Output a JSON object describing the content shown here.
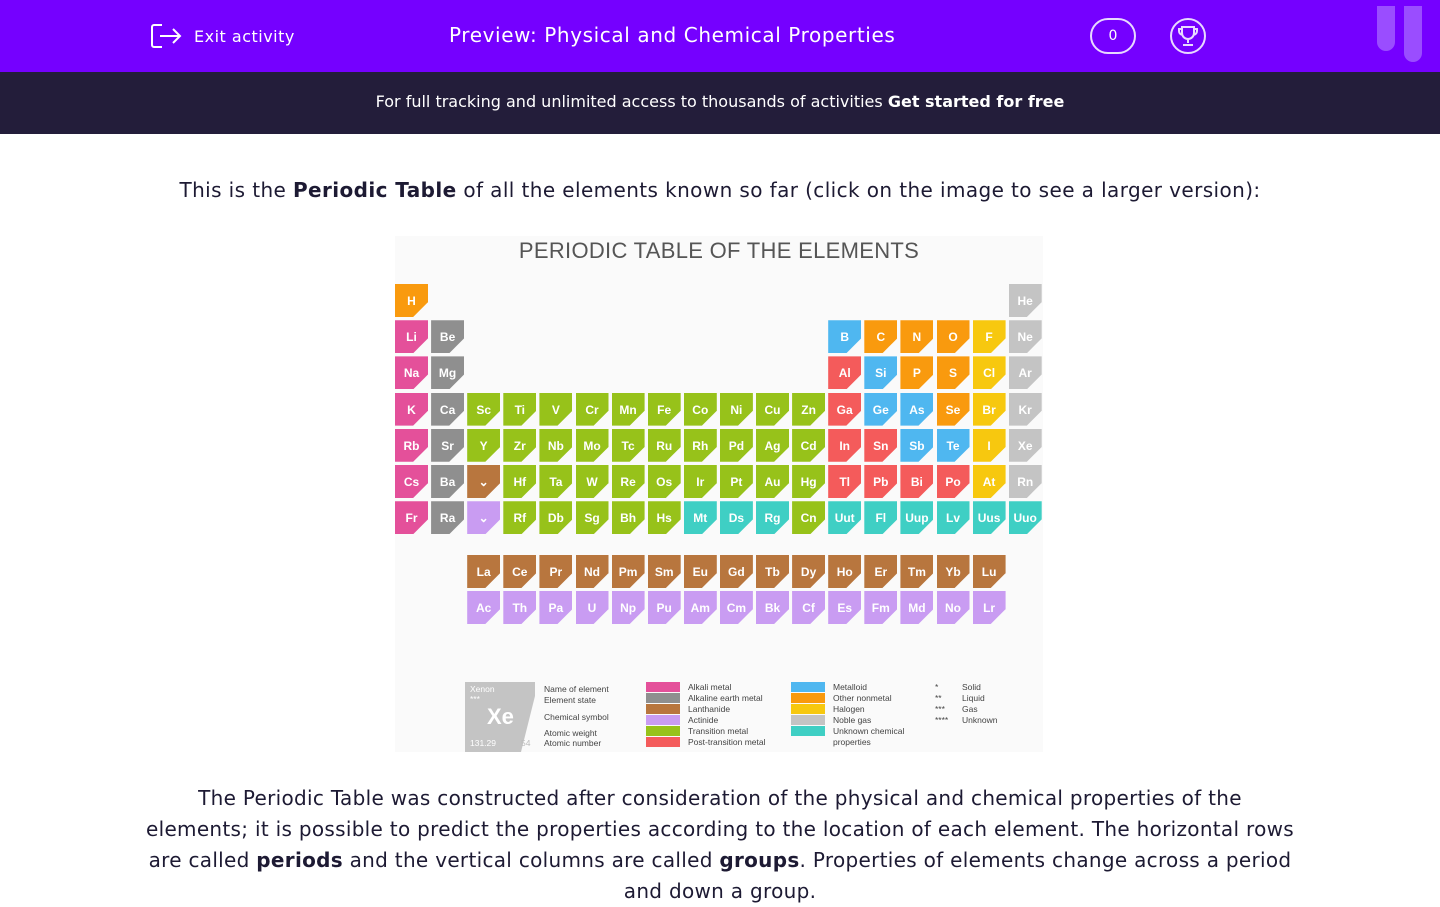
{
  "header": {
    "exit_label": "Exit activity",
    "title": "Preview: Physical and Chemical Properties",
    "score": "0"
  },
  "banner": {
    "text": "For full tracking and unlimited access to thousands of activities ",
    "cta": "Get started for free"
  },
  "content": {
    "intro_pre": "This is the ",
    "intro_bold": "Periodic Table",
    "intro_post": " of all the elements known so far (click on the image to see a larger version):",
    "para": [
      {
        "t": "The Periodic Table was constructed after consideration of the physical and chemical properties of the elements; it is possible to predict the properties according to the location of each element. The horizontal rows are called "
      },
      {
        "b": "periods"
      },
      {
        "t": " and the vertical columns are called "
      },
      {
        "b": "groups"
      },
      {
        "t": ". Properties of elements change across a period and down a group."
      }
    ]
  },
  "periodic_table": {
    "title": "PERIODIC TABLE OF THE ELEMENTS",
    "colors": {
      "a": "#e4509a",
      "e": "#8f8f8f",
      "l": "#b8763e",
      "c": "#c99cf2",
      "t": "#97c21a",
      "p": "#f45b5b",
      "m": "#4fb7f0",
      "n": "#f99a0e",
      "h": "#f7c80f",
      "g": "#c4c4c4",
      "u": "#3fcfc4"
    },
    "rows": [
      [
        "H:n",
        "",
        "",
        "",
        "",
        "",
        "",
        "",
        "",
        "",
        "",
        "",
        "",
        "",
        "",
        "",
        "",
        "He:g"
      ],
      [
        "Li:a",
        "Be:e",
        "",
        "",
        "",
        "",
        "",
        "",
        "",
        "",
        "",
        "",
        "B:m",
        "C:n",
        "N:n",
        "O:n",
        "F:h",
        "Ne:g"
      ],
      [
        "Na:a",
        "Mg:e",
        "",
        "",
        "",
        "",
        "",
        "",
        "",
        "",
        "",
        "",
        "Al:p",
        "Si:m",
        "P:n",
        "S:n",
        "Cl:h",
        "Ar:g"
      ],
      [
        "K:a",
        "Ca:e",
        "Sc:t",
        "Ti:t",
        "V:t",
        "Cr:t",
        "Mn:t",
        "Fe:t",
        "Co:t",
        "Ni:t",
        "Cu:t",
        "Zn:t",
        "Ga:p",
        "Ge:m",
        "As:m",
        "Se:n",
        "Br:h",
        "Kr:g"
      ],
      [
        "Rb:a",
        "Sr:e",
        "Y:t",
        "Zr:t",
        "Nb:t",
        "Mo:t",
        "Tc:t",
        "Ru:t",
        "Rh:t",
        "Pd:t",
        "Ag:t",
        "Cd:t",
        "In:p",
        "Sn:p",
        "Sb:m",
        "Te:m",
        "I:h",
        "Xe:g"
      ],
      [
        "Cs:a",
        "Ba:e",
        "⌄:l",
        "Hf:t",
        "Ta:t",
        "W:t",
        "Re:t",
        "Os:t",
        "Ir:t",
        "Pt:t",
        "Au:t",
        "Hg:t",
        "Tl:p",
        "Pb:p",
        "Bi:p",
        "Po:p",
        "At:h",
        "Rn:g"
      ],
      [
        "Fr:a",
        "Ra:e",
        "⌄:c",
        "Rf:t",
        "Db:t",
        "Sg:t",
        "Bh:t",
        "Hs:t",
        "Mt:u",
        "Ds:u",
        "Rg:u",
        "Cn:t",
        "Uut:u",
        "Fl:u",
        "Uup:u",
        "Lv:u",
        "Uus:u",
        "Uuo:u"
      ]
    ],
    "lanthanides": [
      "La",
      "Ce",
      "Pr",
      "Nd",
      "Pm",
      "Sm",
      "Eu",
      "Gd",
      "Tb",
      "Dy",
      "Ho",
      "Er",
      "Tm",
      "Yb",
      "Lu"
    ],
    "actinides": [
      "Ac",
      "Th",
      "Pa",
      "U",
      "Np",
      "Pu",
      "Am",
      "Cm",
      "Bk",
      "Cf",
      "Es",
      "Fm",
      "Md",
      "No",
      "Lr"
    ],
    "key": {
      "name": "Xenon",
      "state": "***",
      "symbol": "Xe",
      "weight": "131.29",
      "number": "54",
      "labels": [
        "Name of element",
        "Element state",
        "Chemical symbol",
        "Atomic weight",
        "Atomic number"
      ]
    },
    "legend": [
      [
        "a",
        "Alkali metal"
      ],
      [
        "e",
        "Alkaline earth metal"
      ],
      [
        "l",
        "Lanthanide"
      ],
      [
        "c",
        "Actinide"
      ],
      [
        "t",
        "Transition metal"
      ],
      [
        "p",
        "Post-transition metal"
      ],
      [
        "m",
        "Metalloid"
      ],
      [
        "n",
        "Other nonmetal"
      ],
      [
        "h",
        "Halogen"
      ],
      [
        "g",
        "Noble gas"
      ],
      [
        "u",
        "Unknown chemical properties"
      ]
    ],
    "states": [
      [
        "*",
        "Solid"
      ],
      [
        "**",
        "Liquid"
      ],
      [
        "***",
        "Gas"
      ],
      [
        "****",
        "Unknown"
      ]
    ]
  }
}
